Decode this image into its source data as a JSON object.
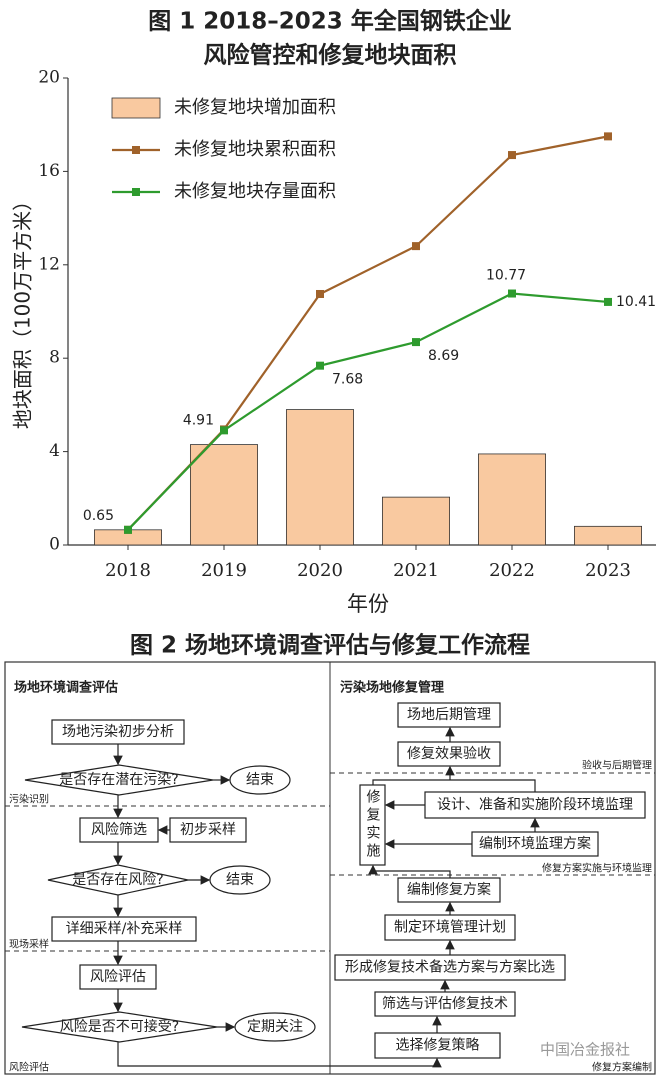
{
  "chart_data": {
    "type": "combo",
    "title": [
      "图 1 2018–2023 年全国钢铁企业",
      "风险管控和修复地块面积"
    ],
    "y_label": "地块面积（100万平方米）",
    "x_label": "年份",
    "categories": [
      "2018",
      "2019",
      "2020",
      "2021",
      "2022",
      "2023"
    ],
    "ylim": [
      0,
      20
    ],
    "yticks": [
      0,
      4,
      8,
      12,
      16,
      20
    ],
    "legend": "upper left",
    "series": [
      {
        "name": "未修复地块增加面积",
        "type": "bar",
        "color": "#f9c9a0",
        "values": [
          0.65,
          4.3,
          5.8,
          2.05,
          3.9,
          0.8
        ]
      },
      {
        "name": "未修复地块累积面积",
        "type": "line",
        "color": "#a0622a",
        "values": [
          0.65,
          4.95,
          10.75,
          12.8,
          16.7,
          17.5
        ]
      },
      {
        "name": "未修复地块存量面积",
        "type": "line",
        "color": "#2e9b2e",
        "values": [
          0.65,
          4.91,
          7.68,
          8.69,
          10.77,
          10.41
        ],
        "labels": true
      }
    ]
  },
  "figure2": {
    "title": "图 2 场地环境调查评估与修复工作流程",
    "left": {
      "title": "场地环境调查评估",
      "nodes": [
        "场地污染初步分析",
        "是否存在潜在污染?",
        "结束",
        "风险筛选",
        "初步采样",
        "是否存在风险?",
        "结束",
        "详细采样/补充采样",
        "风险评估",
        "风险是否不可接受?",
        "定期关注"
      ],
      "stages": [
        "污染识别",
        "现场采样",
        "风险评估"
      ]
    },
    "right": {
      "title": "污染场地修复管理",
      "nodes": [
        "场地后期管理",
        "修复效果验收",
        "修复实施",
        "设计、准备和实施阶段环境监理",
        "编制环境监理方案",
        "编制修复方案",
        "制定环境管理计划",
        "形成修复技术备选方案与方案比选",
        "筛选与评估修复技术",
        "选择修复策略"
      ],
      "stages": [
        "验收与后期管理",
        "修复方案实施与环境监理",
        "修复方案编制"
      ]
    }
  },
  "watermark": "中国冶金报社"
}
